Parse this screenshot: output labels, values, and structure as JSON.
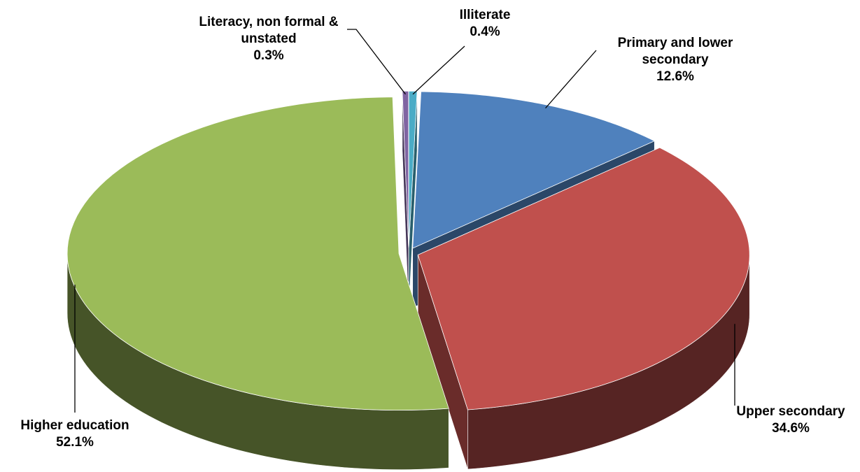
{
  "chart_data": {
    "type": "pie3d",
    "categories": [
      "Illiterate",
      "Primary and lower secondary",
      "Upper secondary",
      "Higher education",
      "Literacy, non formal & unstated"
    ],
    "values": [
      0.4,
      12.6,
      34.6,
      52.1,
      0.3
    ],
    "value_labels": [
      "0.4%",
      "12.6%",
      "34.6%",
      "52.1%",
      "0.3%"
    ],
    "colors": [
      "#4bacc6",
      "#4f81bd",
      "#c0504d",
      "#9bbb59",
      "#8064a2"
    ]
  }
}
